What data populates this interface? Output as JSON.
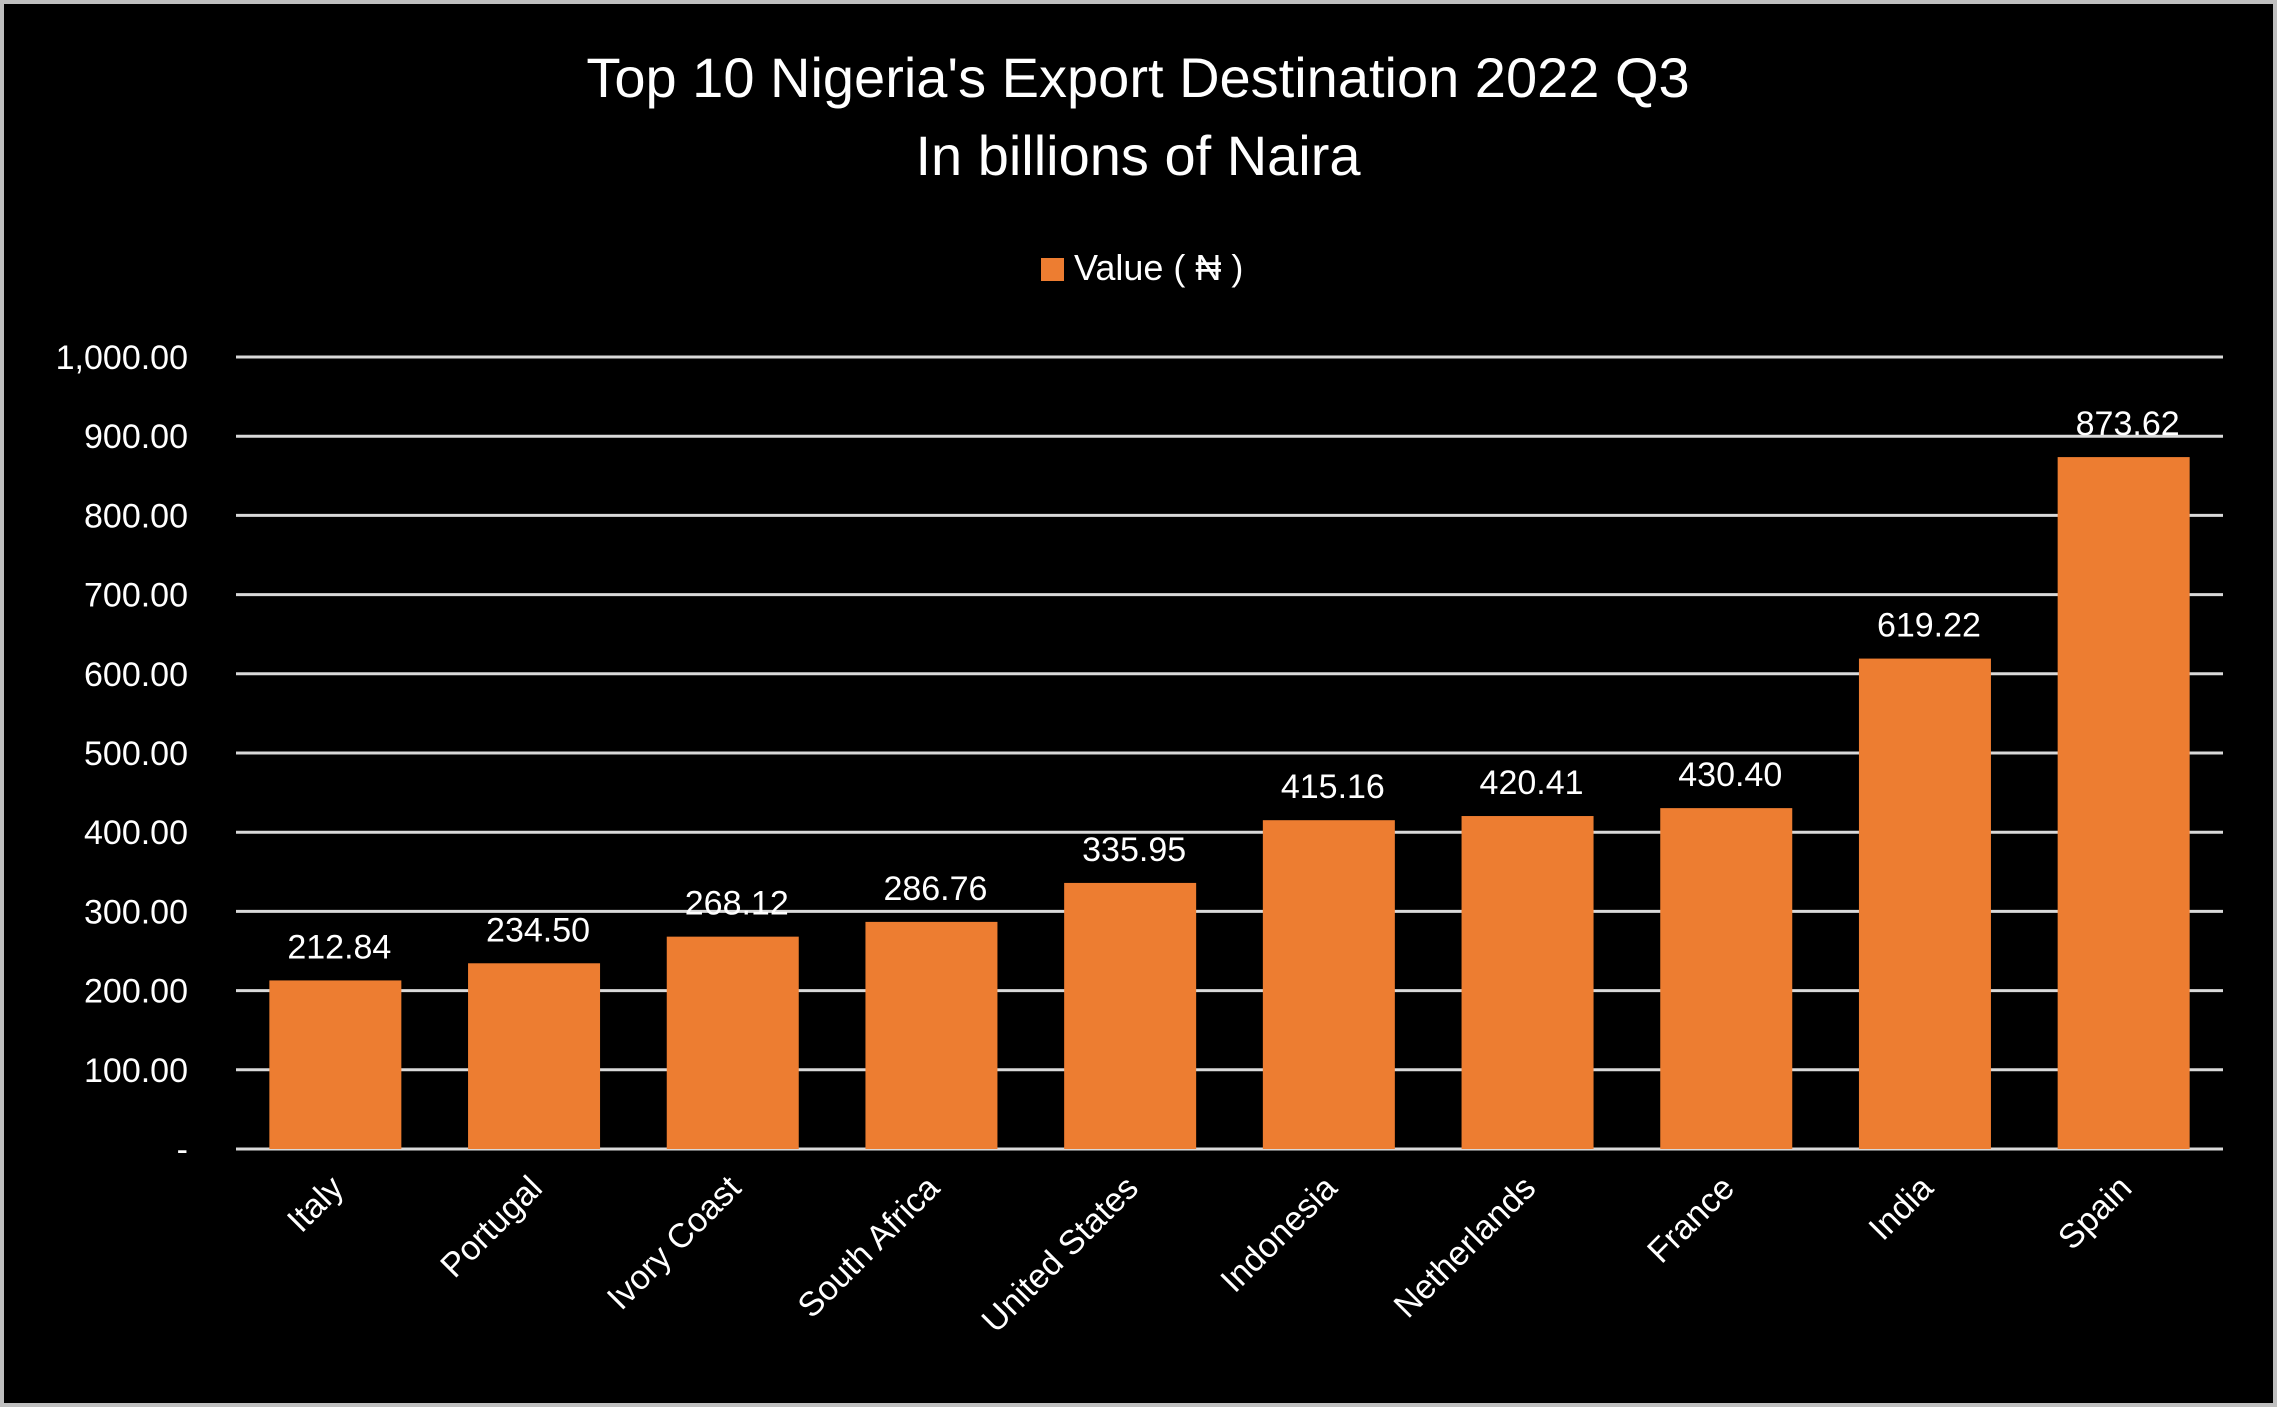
{
  "chart_data": {
    "type": "bar",
    "title": "Top 10 Nigeria's Export Destination 2022 Q3",
    "subtitle": "In billions of Naira",
    "legend": {
      "label": "Value ( ₦ )",
      "placement": "top"
    },
    "categories": [
      "Italy",
      "Portugal",
      "Ivory Coast",
      "South Africa",
      "United States",
      "Indonesia",
      "Netherlands",
      "France",
      "India",
      "Spain"
    ],
    "series": [
      {
        "name": "Value ( ₦ )",
        "values": [
          212.84,
          234.5,
          268.12,
          286.76,
          335.95,
          415.16,
          420.41,
          430.4,
          619.22,
          873.62
        ]
      }
    ],
    "data_labels": [
      "212.84",
      "234.50",
      "268.12",
      "286.76",
      "335.95",
      "415.16",
      "420.41",
      "430.40",
      "619.22",
      "873.62"
    ],
    "yticks": [
      0,
      100,
      200,
      300,
      400,
      500,
      600,
      700,
      800,
      900,
      1000
    ],
    "ytick_labels": [
      "-",
      "100.00",
      "200.00",
      "300.00",
      "400.00",
      "500.00",
      "600.00",
      "700.00",
      "800.00",
      "900.00",
      "1,000.00"
    ],
    "ylim": [
      0,
      1000
    ],
    "xlabel": "",
    "ylabel": "",
    "grid": true,
    "colors": {
      "bar": "#ED7D31",
      "background": "#000000",
      "grid": "#D9D9D9",
      "text": "#FFFFFF"
    }
  }
}
